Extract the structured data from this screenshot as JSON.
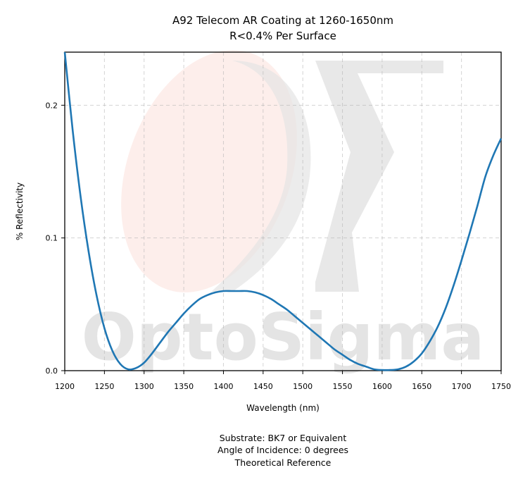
{
  "chart_data": {
    "type": "line",
    "title": "A92 Telecom AR Coating at 1260-1650nm",
    "subtitle": "R<0.4% Per Surface",
    "xlabel": "Wavelength (nm)",
    "ylabel": "% Reflectivity",
    "xlim": [
      1200,
      1750
    ],
    "ylim": [
      0,
      0.24
    ],
    "xticks": [
      1200,
      1250,
      1300,
      1350,
      1400,
      1450,
      1500,
      1550,
      1600,
      1650,
      1700,
      1750
    ],
    "yticks": [
      0.0,
      0.1,
      0.2
    ],
    "ytick_labels": [
      "0.0",
      "0.1",
      "0.2"
    ],
    "grid": true,
    "series": [
      {
        "color": "#1f77b4",
        "x": [
          1200,
          1210,
          1220,
          1230,
          1240,
          1250,
          1260,
          1270,
          1280,
          1290,
          1300,
          1310,
          1320,
          1330,
          1340,
          1350,
          1360,
          1370,
          1380,
          1390,
          1400,
          1410,
          1420,
          1430,
          1440,
          1450,
          1460,
          1470,
          1480,
          1490,
          1500,
          1510,
          1520,
          1530,
          1540,
          1550,
          1560,
          1570,
          1580,
          1590,
          1600,
          1610,
          1620,
          1630,
          1640,
          1650,
          1660,
          1670,
          1680,
          1690,
          1700,
          1710,
          1720,
          1730,
          1740,
          1750
        ],
        "y": [
          0.24,
          0.181,
          0.131,
          0.09,
          0.057,
          0.032,
          0.015,
          0.005,
          0.001,
          0.002,
          0.006,
          0.013,
          0.021,
          0.029,
          0.036,
          0.043,
          0.049,
          0.054,
          0.057,
          0.059,
          0.06,
          0.06,
          0.06,
          0.06,
          0.059,
          0.057,
          0.054,
          0.05,
          0.046,
          0.041,
          0.036,
          0.031,
          0.026,
          0.021,
          0.016,
          0.012,
          0.008,
          0.005,
          0.003,
          0.001,
          0.0005,
          0.0005,
          0.001,
          0.003,
          0.007,
          0.013,
          0.022,
          0.033,
          0.047,
          0.064,
          0.083,
          0.103,
          0.124,
          0.146,
          0.162,
          0.175
        ]
      }
    ],
    "footnotes": [
      "Substrate: BK7 or Equivalent",
      "Angle of Incidence: 0 degrees",
      "Theoretical Reference"
    ]
  },
  "watermark": {
    "text": "OptoSigma",
    "logo_glyph": "Σ",
    "text_color": "#e0e0e0",
    "ellipse_color": "#fde8e6"
  }
}
